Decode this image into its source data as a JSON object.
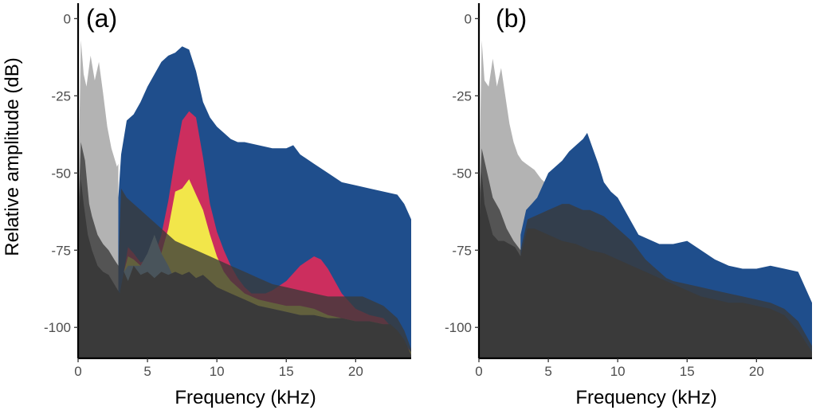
{
  "chart_data": [
    {
      "type": "area",
      "panel_label": "(a)",
      "xlabel": "Frequency (kHz)",
      "ylabel": "Relative amplitude (dB)",
      "xlim": [
        0,
        24
      ],
      "ylim": [
        -110,
        5
      ],
      "xticks": [
        0,
        5,
        10,
        15,
        20
      ],
      "yticks": [
        0,
        -25,
        -50,
        -75,
        -100
      ],
      "series": [
        {
          "color": "#b3b3b3",
          "x": [
            0,
            0.2,
            0.4,
            0.6,
            0.9,
            1.2,
            1.5,
            1.8,
            2.1,
            2.4,
            2.6,
            2.8,
            2.9
          ],
          "y": [
            -60,
            -7,
            -18,
            -22,
            -12,
            -20,
            -14,
            -24,
            -35,
            -42,
            -45,
            -48,
            -47
          ]
        },
        {
          "color": "#1f4e8c",
          "x": [
            2.9,
            3.1,
            3.5,
            4,
            4.5,
            5,
            5.5,
            6,
            6.5,
            7,
            7.5,
            8,
            8.5,
            9,
            9.5,
            10,
            10.5,
            11,
            11.5,
            12,
            13,
            14,
            15,
            15.5,
            16,
            17,
            18,
            19,
            20,
            21,
            22,
            23,
            23.5,
            24
          ],
          "y": [
            -58,
            -44,
            -33,
            -31,
            -27,
            -22,
            -18,
            -14,
            -12,
            -11,
            -9,
            -10,
            -17,
            -27,
            -32,
            -35,
            -37,
            -39,
            -40,
            -40,
            -41,
            -42,
            -42,
            -41,
            -44,
            -47,
            -50,
            -53,
            -54,
            -55,
            -56,
            -57,
            -60,
            -65
          ]
        },
        {
          "color": "#cc2e5e",
          "x": [
            3.3,
            3.6,
            4,
            4.5,
            5,
            5.5,
            6,
            6.5,
            7,
            7.5,
            8,
            8.5,
            9,
            9.5,
            10,
            10.5,
            11,
            11.5,
            12,
            12.5,
            13,
            13.5,
            14,
            15,
            16,
            17,
            17.5,
            18,
            19,
            20,
            21,
            22,
            23,
            24
          ],
          "y": [
            -82,
            -74,
            -76,
            -79,
            -78,
            -77,
            -70,
            -59,
            -45,
            -33,
            -30,
            -32,
            -45,
            -60,
            -69,
            -75,
            -80,
            -84,
            -87,
            -89,
            -89,
            -89,
            -88,
            -85,
            -80,
            -77,
            -78,
            -81,
            -89,
            -94,
            -96,
            -97,
            -102,
            -108
          ]
        },
        {
          "color": "#f2e64a",
          "x": [
            3.3,
            3.6,
            4,
            4.5,
            5,
            5.5,
            6,
            6.5,
            7,
            7.5,
            8,
            8.5,
            9,
            9.5,
            10,
            10.5,
            11,
            12,
            13,
            14,
            15,
            16,
            17,
            18,
            19,
            20,
            21,
            22,
            23,
            24
          ],
          "y": [
            -82,
            -77,
            -78,
            -80,
            -80,
            -78,
            -76,
            -68,
            -56,
            -55,
            -52,
            -57,
            -62,
            -70,
            -77,
            -82,
            -85,
            -89,
            -91,
            -92,
            -93,
            -93,
            -94,
            -96,
            -97,
            -98,
            -98,
            -99,
            -103,
            -108
          ]
        },
        {
          "color": "#7fb0d1",
          "x": [
            3.3,
            3.6,
            4,
            4.5,
            5,
            5.5,
            6,
            6.5,
            7,
            7.5,
            8,
            8.5,
            9,
            9.5,
            10,
            11,
            12,
            13,
            14,
            15,
            16,
            17,
            18,
            19,
            20,
            21,
            22,
            23,
            24
          ],
          "y": [
            -82,
            -80,
            -80,
            -80,
            -76,
            -70,
            -76,
            -80,
            -85,
            -86,
            -86,
            -87,
            -88,
            -88,
            -89,
            -91,
            -92,
            -93,
            -94,
            -95,
            -96,
            -97,
            -97,
            -98,
            -98,
            -99,
            -100,
            -104,
            -109
          ]
        },
        {
          "color": "#3a3a3a",
          "opacity": 0.78,
          "x": [
            0,
            0.2,
            0.5,
            0.8,
            1,
            1.4,
            1.8,
            2.2,
            2.6,
            2.9,
            3.1,
            3.5,
            4,
            4.5,
            5,
            6,
            7,
            8,
            9,
            10,
            11,
            12,
            13,
            14,
            15,
            16,
            17,
            18,
            19,
            20,
            20.5,
            21,
            22,
            23,
            23.5,
            24
          ],
          "y": [
            -65,
            -40,
            -46,
            -60,
            -64,
            -70,
            -73,
            -75,
            -78,
            -80,
            -55,
            -58,
            -60,
            -62,
            -64,
            -68,
            -72,
            -74,
            -76,
            -78,
            -80,
            -82,
            -84,
            -86,
            -87,
            -88,
            -89,
            -90,
            -90,
            -90,
            -90,
            -91,
            -93,
            -97,
            -101,
            -107
          ]
        },
        {
          "color": "#3a3a3a",
          "x": [
            0,
            0.2,
            0.4,
            0.7,
            1,
            1.4,
            1.8,
            2.2,
            2.6,
            3,
            3.3,
            3.6,
            4,
            4.5,
            5,
            5.5,
            6,
            6.5,
            7,
            7.5,
            8,
            8.5,
            9,
            9.5,
            10,
            11,
            12,
            13,
            14,
            15,
            16,
            17,
            18,
            19,
            20,
            21,
            22,
            22.5,
            23,
            23.5,
            24
          ],
          "y": [
            -70,
            -52,
            -60,
            -70,
            -75,
            -80,
            -82,
            -83,
            -86,
            -89,
            -82,
            -85,
            -80,
            -83,
            -82,
            -84,
            -82,
            -83,
            -82,
            -83,
            -82,
            -84,
            -83,
            -85,
            -87,
            -89,
            -91,
            -93,
            -94,
            -95,
            -96,
            -96,
            -97,
            -97,
            -98,
            -98,
            -99,
            -99,
            -101,
            -104,
            -109
          ]
        }
      ]
    },
    {
      "type": "area",
      "panel_label": "(b)",
      "xlabel": "Frequency (kHz)",
      "ylabel": "",
      "xlim": [
        0,
        24
      ],
      "ylim": [
        -110,
        5
      ],
      "xticks": [
        0,
        5,
        10,
        15,
        20
      ],
      "yticks": [
        0,
        -25,
        -50,
        -75,
        -100
      ],
      "series": [
        {
          "color": "#b3b3b3",
          "x": [
            0,
            0.2,
            0.4,
            0.7,
            1,
            1.3,
            1.6,
            1.9,
            2.2,
            2.5,
            2.8,
            3.1,
            3.4,
            3.7,
            4,
            4.5,
            5
          ],
          "y": [
            -60,
            -7,
            -20,
            -22,
            -13,
            -22,
            -16,
            -25,
            -34,
            -40,
            -44,
            -46,
            -47,
            -48,
            -49,
            -52,
            -54
          ]
        },
        {
          "color": "#1f4e8c",
          "x": [
            3,
            3.4,
            3.8,
            4.2,
            4.6,
            5,
            5.5,
            6,
            6.5,
            7,
            7.5,
            7.8,
            8.2,
            8.6,
            9,
            9.5,
            10,
            10.5,
            11,
            11.5,
            12,
            12.5,
            13,
            14,
            15,
            16,
            17,
            18,
            19,
            20,
            21,
            22,
            23,
            24
          ],
          "y": [
            -70,
            -62,
            -60,
            -58,
            -54,
            -50,
            -48,
            -46,
            -43,
            -41,
            -39,
            -37,
            -42,
            -47,
            -53,
            -56,
            -58,
            -62,
            -66,
            -70,
            -71,
            -72,
            -73,
            -73,
            -72,
            -75,
            -78,
            -80,
            -81,
            -81,
            -80,
            -81,
            -82,
            -92
          ]
        },
        {
          "color": "#3a3a3a",
          "opacity": 0.78,
          "x": [
            0,
            0.2,
            0.5,
            1,
            1.5,
            2,
            2.5,
            3,
            3.5,
            4,
            4.5,
            5,
            5.5,
            6,
            6.5,
            7,
            7.5,
            8,
            8.5,
            9,
            9.5,
            10,
            10.5,
            11,
            11.5,
            12,
            12.5,
            13,
            13.5,
            14,
            15,
            16,
            17,
            18,
            19,
            20,
            21,
            22,
            23,
            24
          ],
          "y": [
            -62,
            -42,
            -48,
            -58,
            -62,
            -68,
            -72,
            -75,
            -65,
            -64,
            -63,
            -62,
            -61,
            -60,
            -60,
            -61,
            -62,
            -62,
            -63,
            -64,
            -66,
            -68,
            -70,
            -72,
            -75,
            -78,
            -80,
            -82,
            -84,
            -85,
            -86,
            -87,
            -88,
            -89,
            -90,
            -91,
            -92,
            -94,
            -98,
            -106
          ]
        },
        {
          "color": "#3a3a3a",
          "x": [
            0,
            0.2,
            0.4,
            0.7,
            1,
            1.4,
            1.8,
            2.2,
            2.6,
            3,
            3.5,
            4,
            4.5,
            5,
            6,
            7,
            8,
            9,
            10,
            11,
            12,
            13,
            14,
            15,
            16,
            17,
            18,
            19,
            20,
            21,
            22,
            23,
            24
          ],
          "y": [
            -70,
            -50,
            -60,
            -65,
            -70,
            -72,
            -72,
            -73,
            -74,
            -77,
            -68,
            -68,
            -69,
            -70,
            -72,
            -73,
            -75,
            -76,
            -78,
            -80,
            -82,
            -84,
            -86,
            -88,
            -90,
            -91,
            -92,
            -92,
            -93,
            -94,
            -96,
            -101,
            -108
          ]
        }
      ]
    }
  ]
}
